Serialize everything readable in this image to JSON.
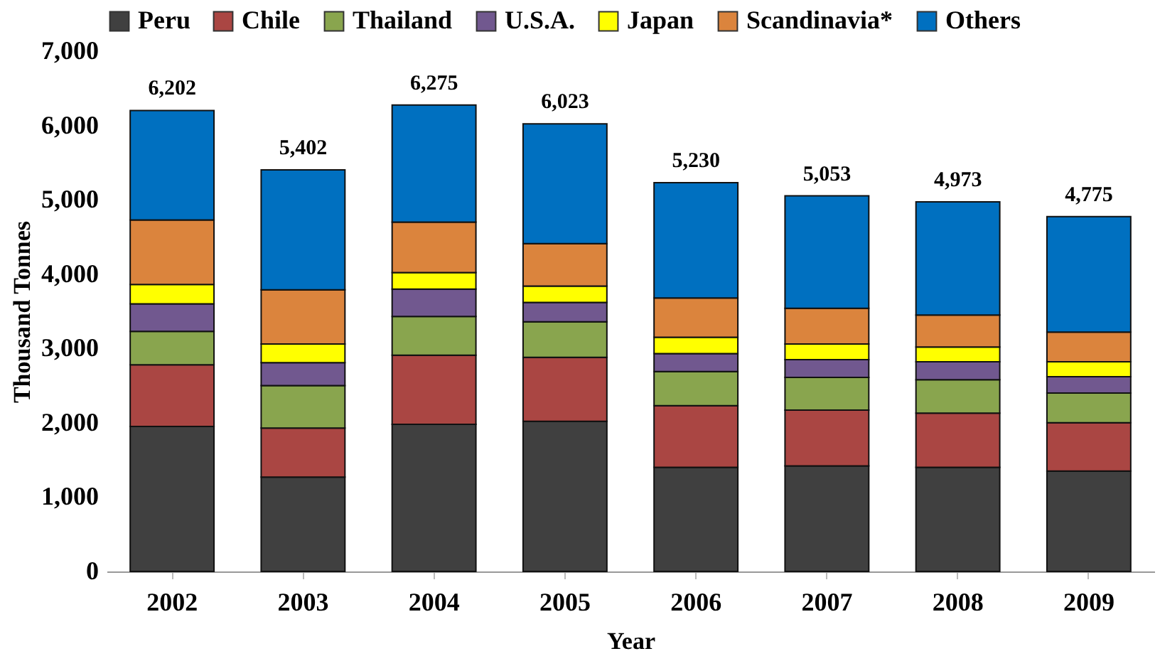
{
  "chart_data": {
    "type": "bar",
    "stacked": true,
    "xlabel": "Year",
    "ylabel": "Thousand Tonnes",
    "categories": [
      "2002",
      "2003",
      "2004",
      "2005",
      "2006",
      "2007",
      "2008",
      "2009"
    ],
    "series": [
      {
        "name": "Peru",
        "color": "#404040",
        "values": [
          1950,
          1270,
          1980,
          2020,
          1400,
          1420,
          1400,
          1350
        ]
      },
      {
        "name": "Chile",
        "color": "#aa4643",
        "values": [
          830,
          660,
          930,
          860,
          830,
          750,
          730,
          650
        ]
      },
      {
        "name": "Thailand",
        "color": "#89a54e",
        "values": [
          450,
          570,
          520,
          480,
          460,
          440,
          450,
          400
        ]
      },
      {
        "name": "U.S.A.",
        "color": "#71588f",
        "values": [
          370,
          310,
          370,
          260,
          240,
          240,
          240,
          220
        ]
      },
      {
        "name": "Japan",
        "color": "#ffff00",
        "values": [
          260,
          250,
          220,
          220,
          220,
          210,
          200,
          200
        ]
      },
      {
        "name": "Scandinavia*",
        "color": "#db843d",
        "values": [
          870,
          730,
          680,
          570,
          530,
          480,
          430,
          400
        ]
      },
      {
        "name": "Others",
        "color": "#0070c0",
        "values": [
          1472,
          1612,
          1575,
          1613,
          1550,
          1513,
          1523,
          1555
        ]
      }
    ],
    "totals": [
      "6,202",
      "5,402",
      "6,275",
      "6,023",
      "5,230",
      "5,053",
      "4,973",
      "4,775"
    ],
    "ylim": [
      0,
      7000
    ],
    "yticks": [
      {
        "value": 0,
        "label": "0"
      },
      {
        "value": 1000,
        "label": "1,000"
      },
      {
        "value": 2000,
        "label": "2,000"
      },
      {
        "value": 3000,
        "label": "3,000"
      },
      {
        "value": 4000,
        "label": "4,000"
      },
      {
        "value": 5000,
        "label": "5,000"
      },
      {
        "value": 6000,
        "label": "6,000"
      },
      {
        "value": 7000,
        "label": "7,000"
      }
    ],
    "grid": false,
    "legend": "top"
  }
}
